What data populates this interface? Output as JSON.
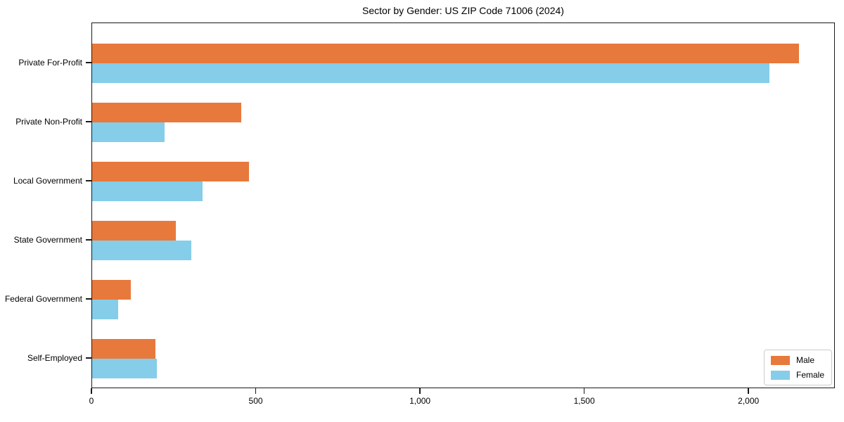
{
  "title": "Sector by Gender: US ZIP Code 71006 (2024)",
  "colors": {
    "male": "#e8793c",
    "female": "#85cde9",
    "axis": "#1a1a1a",
    "legend_border": "#cccccc",
    "background": "#ffffff"
  },
  "legend": {
    "position": "lower right",
    "items": [
      {
        "label": "Male",
        "color_key": "male"
      },
      {
        "label": "Female",
        "color_key": "female"
      }
    ]
  },
  "chart_data": {
    "type": "bar",
    "orientation": "horizontal",
    "title": "Sector by Gender: US ZIP Code 71006 (2024)",
    "categories": [
      "Private For-Profit",
      "Private Non-Profit",
      "Local Government",
      "State Government",
      "Federal Government",
      "Self-Employed"
    ],
    "series": [
      {
        "name": "Male",
        "color": "#e8793c",
        "values": [
          2152,
          454,
          477,
          255,
          118,
          193
        ]
      },
      {
        "name": "Female",
        "color": "#85cde9",
        "values": [
          2062,
          220,
          336,
          302,
          79,
          197
        ]
      }
    ],
    "xlabel": "",
    "ylabel": "",
    "xlim": [
      0,
      2263
    ],
    "xticks": [
      0,
      500,
      1000,
      1500,
      2000
    ],
    "xtick_labels": [
      "0",
      "500",
      "1,000",
      "1,500",
      "2,000"
    ],
    "grid": false,
    "legend_position": "lower right"
  }
}
